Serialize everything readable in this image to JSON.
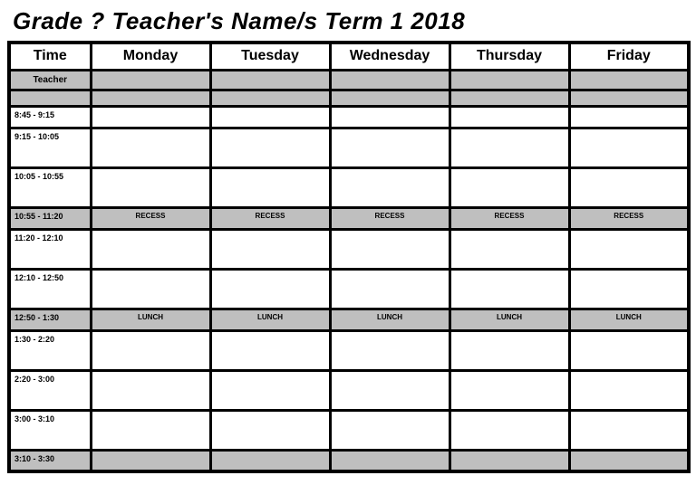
{
  "title": "Grade ? Teacher's Name/s Term 1 2018",
  "columns": {
    "time": "Time",
    "days": [
      "Monday",
      "Tuesday",
      "Wednesday",
      "Thursday",
      "Friday"
    ]
  },
  "teacher_label": "Teacher",
  "rows": [
    {
      "time": "8:45 - 9:15",
      "height": "short",
      "shaded": false,
      "label": ""
    },
    {
      "time": "9:15 - 10:05",
      "height": "tall",
      "shaded": false,
      "label": ""
    },
    {
      "time": "10:05 - 10:55",
      "height": "tall",
      "shaded": false,
      "label": ""
    },
    {
      "time": "10:55 - 11:20",
      "height": "short",
      "shaded": true,
      "label": "RECESS"
    },
    {
      "time": "11:20 - 12:10",
      "height": "tall",
      "shaded": false,
      "label": ""
    },
    {
      "time": "12:10 - 12:50",
      "height": "tall",
      "shaded": false,
      "label": ""
    },
    {
      "time": "12:50 - 1:30",
      "height": "short",
      "shaded": true,
      "label": "LUNCH"
    },
    {
      "time": "1:30 - 2:20",
      "height": "tall",
      "shaded": false,
      "label": ""
    },
    {
      "time": "2:20 - 3:00",
      "height": "tall",
      "shaded": false,
      "label": ""
    },
    {
      "time": "3:00 - 3:10",
      "height": "tall",
      "shaded": false,
      "label": ""
    },
    {
      "time": "3:10 - 3:30",
      "height": "short",
      "shaded": true,
      "label": ""
    }
  ],
  "style": {
    "shaded_color": "#bfbfbf",
    "border_color": "#000000",
    "background_color": "#ffffff",
    "title_fontsize": 26,
    "header_fontsize": 16,
    "time_fontsize": 9,
    "break_fontsize": 8,
    "tall_row_height": 44,
    "short_row_height": 24
  }
}
